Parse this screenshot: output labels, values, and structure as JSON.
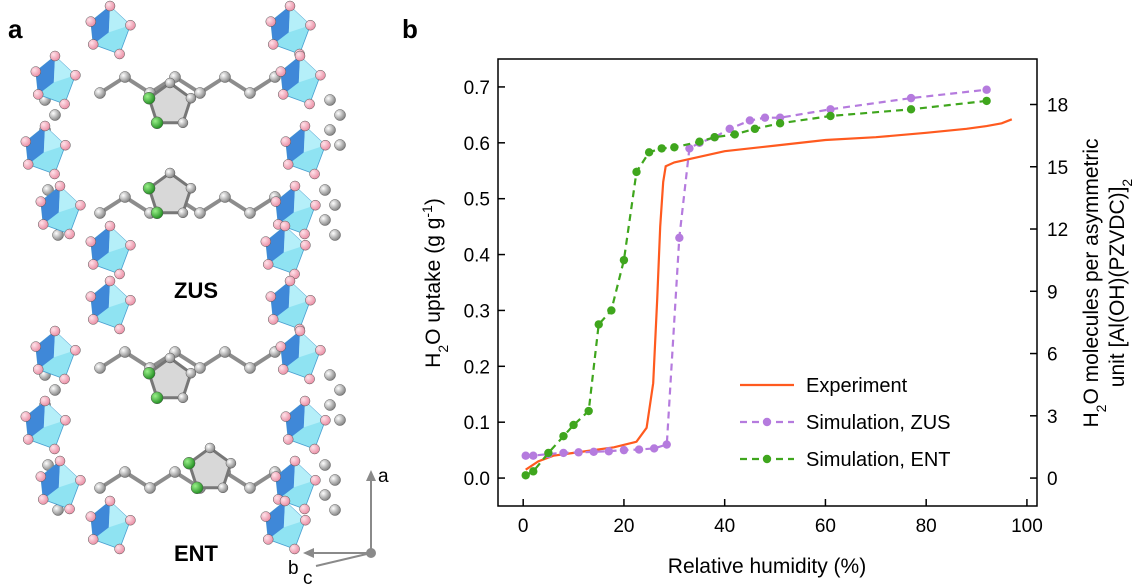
{
  "panels": {
    "a": "a",
    "b": "b"
  },
  "structures": {
    "top_label": "ZUS",
    "bottom_label": "ENT",
    "axes": {
      "a": "a",
      "b": "b",
      "c": "c"
    },
    "colors": {
      "polyhedron_dark": "#3b83d6",
      "polyhedron_light": "#8fe3f2",
      "oxygen": "#f4a6b8",
      "carbon": "#9a9a9a",
      "nitrogen": "#2ca02c",
      "ring": "#d8d8d8"
    }
  },
  "chart_data": {
    "type": "line",
    "title": "",
    "xlabel": "Relative humidity (%)",
    "ylabel_left": {
      "main": "H",
      "sub": "2",
      "rest": "O uptake (g g",
      "sup": "-1",
      "end": ")"
    },
    "ylabel_right_line1": {
      "main": "H",
      "sub": "2",
      "rest": "O molecules per asymmetric"
    },
    "ylabel_right_line2": {
      "main": "unit [Al(OH)(PZVDC)]",
      "sub": "2"
    },
    "xlim": [
      -5,
      102
    ],
    "ylim": [
      -0.05,
      0.75
    ],
    "y2lim": [
      -1.3462,
      20.1923
    ],
    "xticks": [
      0,
      20,
      40,
      60,
      80,
      100
    ],
    "xtick_labels": [
      "0",
      "20",
      "40",
      "60",
      "80",
      "100"
    ],
    "yticks": [
      0.0,
      0.1,
      0.2,
      0.3,
      0.4,
      0.5,
      0.6,
      0.7
    ],
    "ytick_labels": [
      "0.0",
      "0.1",
      "0.2",
      "0.3",
      "0.4",
      "0.5",
      "0.6",
      "0.7"
    ],
    "y2ticks": [
      0,
      3,
      6,
      9,
      12,
      15,
      18
    ],
    "y2tick_labels": [
      "0",
      "3",
      "6",
      "9",
      "12",
      "15",
      "18"
    ],
    "grid": false,
    "legend_position": "bottom-right",
    "series": [
      {
        "name": "Experiment",
        "color": "#ff5a1f",
        "style": "solid",
        "markers": false,
        "x": [
          0.5,
          3,
          6,
          10,
          14,
          18,
          22.5,
          24.5,
          25.8,
          26.6,
          27.2,
          27.8,
          28.3,
          30,
          35,
          40,
          50,
          60,
          70,
          80,
          88,
          92,
          95,
          97
        ],
        "y": [
          0.015,
          0.03,
          0.04,
          0.045,
          0.05,
          0.055,
          0.065,
          0.09,
          0.17,
          0.32,
          0.45,
          0.53,
          0.558,
          0.565,
          0.575,
          0.585,
          0.595,
          0.605,
          0.61,
          0.618,
          0.625,
          0.63,
          0.635,
          0.642
        ]
      },
      {
        "name": "Simulation, ZUS",
        "color": "#b57bde",
        "style": "dashed",
        "markers": true,
        "x": [
          0.5,
          2,
          5,
          8,
          11,
          14,
          17,
          20,
          23,
          26,
          28.5,
          31,
          33,
          35,
          38,
          41,
          45,
          48,
          51,
          61,
          77,
          92
        ],
        "y": [
          0.04,
          0.04,
          0.043,
          0.045,
          0.046,
          0.047,
          0.048,
          0.05,
          0.051,
          0.053,
          0.06,
          0.43,
          0.59,
          0.6,
          0.61,
          0.625,
          0.64,
          0.645,
          0.645,
          0.66,
          0.68,
          0.695
        ]
      },
      {
        "name": "Simulation, ENT",
        "color": "#3fa61d",
        "style": "dashed",
        "markers": true,
        "x": [
          0.5,
          2,
          5,
          8,
          10,
          13,
          15,
          17.5,
          20,
          22.5,
          25,
          27.5,
          30,
          35,
          38,
          42,
          46,
          51,
          61,
          77,
          92
        ],
        "y": [
          0.005,
          0.012,
          0.045,
          0.075,
          0.095,
          0.12,
          0.275,
          0.3,
          0.39,
          0.548,
          0.583,
          0.59,
          0.592,
          0.602,
          0.61,
          0.615,
          0.625,
          0.635,
          0.648,
          0.66,
          0.675
        ]
      }
    ]
  }
}
